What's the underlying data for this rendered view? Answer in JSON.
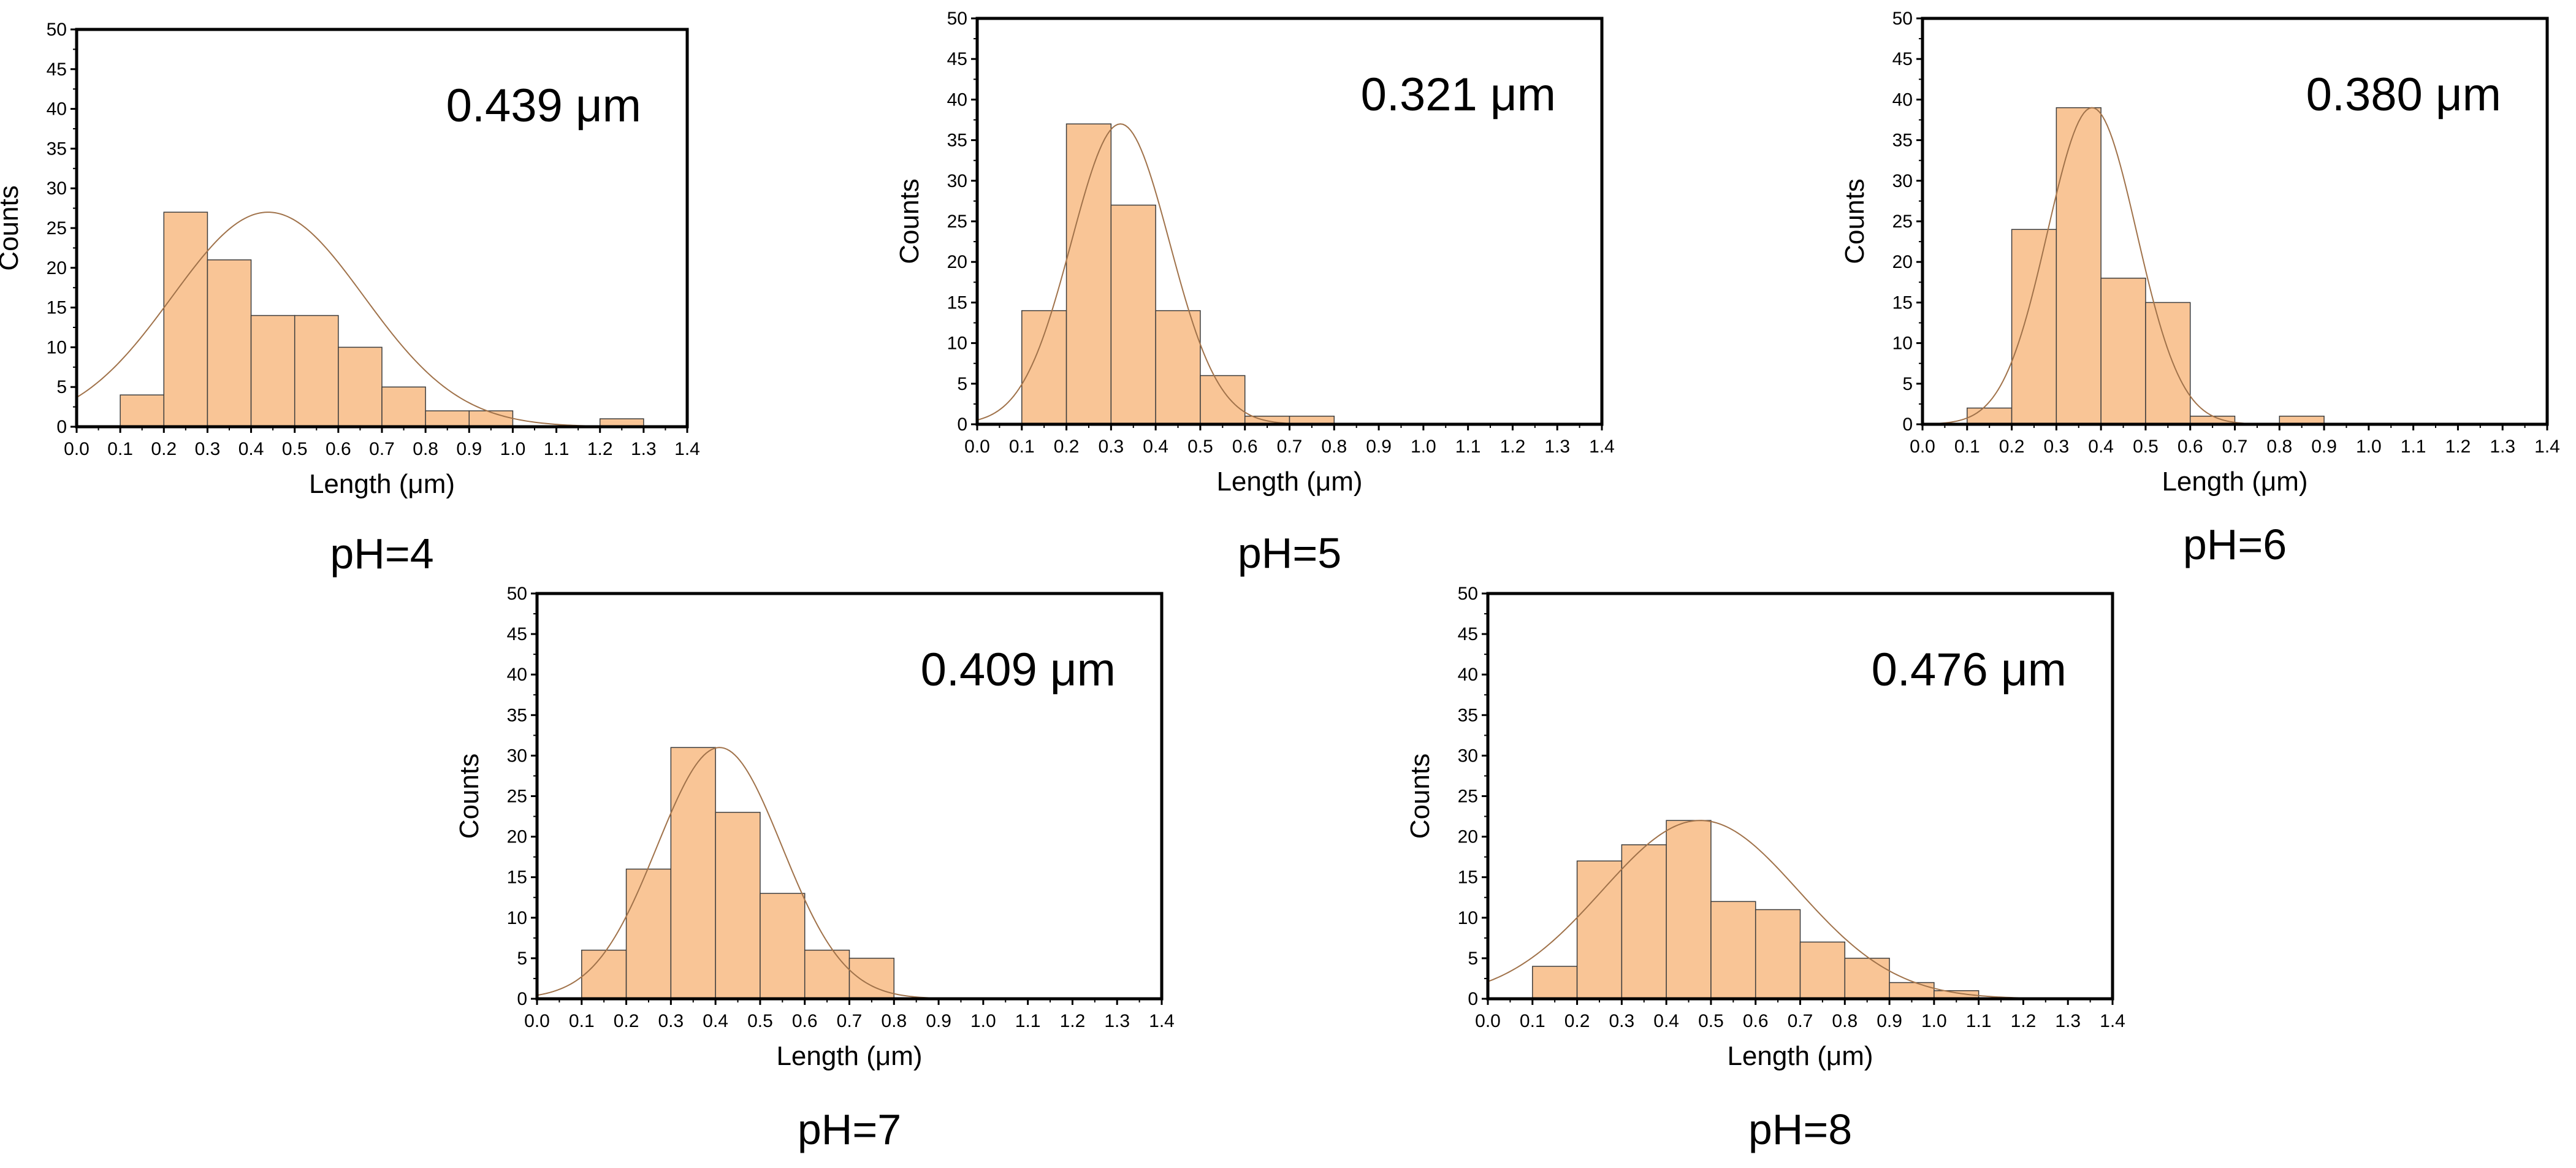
{
  "colors": {
    "bar_fill": "#F9C596",
    "bar_stroke": "#3d3d3d",
    "fit_curve": "#A0724A",
    "axis": "#000000",
    "background": "#ffffff"
  },
  "chart_data": [
    {
      "id": "ph4",
      "type": "bar",
      "subtype": "histogram_with_normal_fit",
      "caption": "pH=4",
      "annotation": "0.439 μm",
      "xlabel": "Length (μm)",
      "ylabel": "Counts",
      "xlim": [
        0.0,
        1.4
      ],
      "ylim": [
        0,
        50
      ],
      "x_ticks": [
        "0.0",
        "0.1",
        "0.2",
        "0.3",
        "0.4",
        "0.5",
        "0.6",
        "0.7",
        "0.8",
        "0.9",
        "1.0",
        "1.1",
        "1.2",
        "1.3",
        "1.4"
      ],
      "y_ticks": [
        "0",
        "5",
        "10",
        "15",
        "20",
        "25",
        "30",
        "35",
        "40",
        "45",
        "50"
      ],
      "bin_width": 0.1,
      "bin_starts": [
        0.1,
        0.2,
        0.3,
        0.4,
        0.5,
        0.6,
        0.7,
        0.8,
        0.9,
        1.2
      ],
      "values": [
        4,
        27,
        21,
        14,
        14,
        10,
        5,
        2,
        2,
        1
      ],
      "fit": {
        "mean": 0.439,
        "peak": 27,
        "sd": 0.22
      }
    },
    {
      "id": "ph5",
      "type": "bar",
      "subtype": "histogram_with_normal_fit",
      "caption": "pH=5",
      "annotation": "0.321 μm",
      "xlabel": "Length (μm)",
      "ylabel": "Counts",
      "xlim": [
        0.0,
        1.4
      ],
      "ylim": [
        0,
        50
      ],
      "x_ticks": [
        "0.0",
        "0.1",
        "0.2",
        "0.3",
        "0.4",
        "0.5",
        "0.6",
        "0.7",
        "0.8",
        "0.9",
        "1.0",
        "1.1",
        "1.2",
        "1.3",
        "1.4"
      ],
      "y_ticks": [
        "0",
        "5",
        "10",
        "15",
        "20",
        "25",
        "30",
        "35",
        "40",
        "45",
        "50"
      ],
      "bin_width": 0.1,
      "bin_starts": [
        0.1,
        0.2,
        0.3,
        0.4,
        0.5,
        0.6,
        0.7
      ],
      "values": [
        14,
        37,
        27,
        14,
        6,
        1,
        1
      ],
      "fit": {
        "mean": 0.321,
        "peak": 37,
        "sd": 0.11
      }
    },
    {
      "id": "ph6",
      "type": "bar",
      "subtype": "histogram_with_normal_fit",
      "caption": "pH=6",
      "annotation": "0.380 μm",
      "xlabel": "Length (μm)",
      "ylabel": "Counts",
      "xlim": [
        0.0,
        1.4
      ],
      "ylim": [
        0,
        50
      ],
      "x_ticks": [
        "0.0",
        "0.1",
        "0.2",
        "0.3",
        "0.4",
        "0.5",
        "0.6",
        "0.7",
        "0.8",
        "0.9",
        "1.0",
        "1.1",
        "1.2",
        "1.3",
        "1.4"
      ],
      "y_ticks": [
        "0",
        "5",
        "10",
        "15",
        "20",
        "25",
        "30",
        "35",
        "40",
        "45",
        "50"
      ],
      "bin_width": 0.1,
      "bin_starts": [
        0.1,
        0.2,
        0.3,
        0.4,
        0.5,
        0.6,
        0.8
      ],
      "values": [
        2,
        24,
        39,
        18,
        15,
        1,
        1
      ],
      "fit": {
        "mean": 0.38,
        "peak": 39,
        "sd": 0.1
      }
    },
    {
      "id": "ph7",
      "type": "bar",
      "subtype": "histogram_with_normal_fit",
      "caption": "pH=7",
      "annotation": "0.409 μm",
      "xlabel": "Length (μm)",
      "ylabel": "Counts",
      "xlim": [
        0.0,
        1.4
      ],
      "ylim": [
        0,
        50
      ],
      "x_ticks": [
        "0.0",
        "0.1",
        "0.2",
        "0.3",
        "0.4",
        "0.5",
        "0.6",
        "0.7",
        "0.8",
        "0.9",
        "1.0",
        "1.1",
        "1.2",
        "1.3",
        "1.4"
      ],
      "y_ticks": [
        "0",
        "5",
        "10",
        "15",
        "20",
        "25",
        "30",
        "35",
        "40",
        "45",
        "50"
      ],
      "bin_width": 0.1,
      "bin_starts": [
        0.1,
        0.2,
        0.3,
        0.4,
        0.5,
        0.6,
        0.7
      ],
      "values": [
        6,
        16,
        31,
        23,
        13,
        6,
        5
      ],
      "fit": {
        "mean": 0.409,
        "peak": 31,
        "sd": 0.14
      }
    },
    {
      "id": "ph8",
      "type": "bar",
      "subtype": "histogram_with_normal_fit",
      "caption": "pH=8",
      "annotation": "0.476 μm",
      "xlabel": "Length (μm)",
      "ylabel": "Counts",
      "xlim": [
        0.0,
        1.4
      ],
      "ylim": [
        0,
        50
      ],
      "x_ticks": [
        "0.0",
        "0.1",
        "0.2",
        "0.3",
        "0.4",
        "0.5",
        "0.6",
        "0.7",
        "0.8",
        "0.9",
        "1.0",
        "1.1",
        "1.2",
        "1.3",
        "1.4"
      ],
      "y_ticks": [
        "0",
        "5",
        "10",
        "15",
        "20",
        "25",
        "30",
        "35",
        "40",
        "45",
        "50"
      ],
      "bin_width": 0.1,
      "bin_starts": [
        0.1,
        0.2,
        0.3,
        0.4,
        0.5,
        0.6,
        0.7,
        0.8,
        0.9,
        1.0
      ],
      "values": [
        4,
        17,
        19,
        22,
        12,
        11,
        7,
        5,
        2,
        1
      ],
      "fit": {
        "mean": 0.476,
        "peak": 22,
        "sd": 0.22
      }
    }
  ]
}
